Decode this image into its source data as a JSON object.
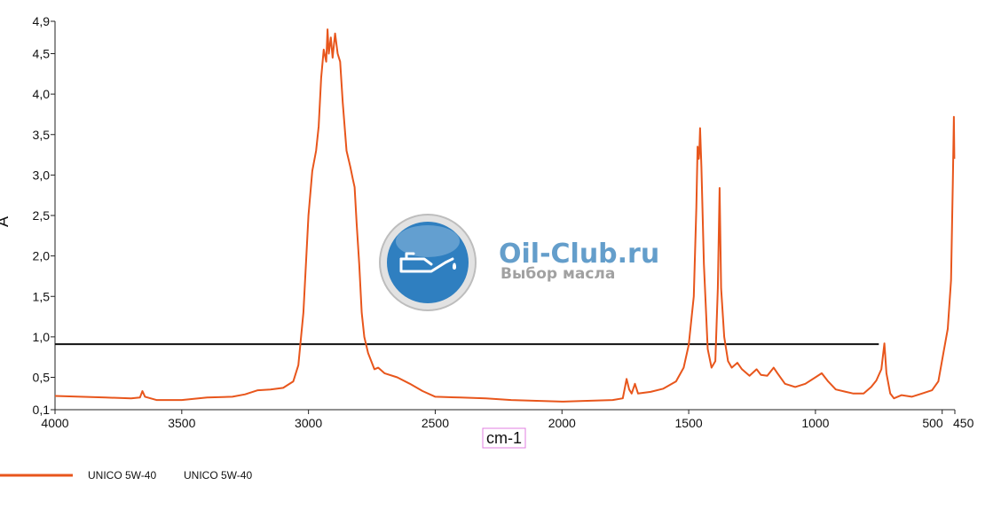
{
  "chart_data": {
    "type": "line",
    "title": "",
    "xlabel": "cm-1",
    "ylabel": "A",
    "xlim": [
      4000,
      450
    ],
    "ylim": [
      0.1,
      4.9
    ],
    "x_reversed": true,
    "x_ticks": [
      4000,
      3500,
      3000,
      2500,
      2000,
      1500,
      1000,
      500,
      450
    ],
    "x_tick_labels": [
      "4000",
      "3500",
      "3000",
      "2500",
      "2000",
      "1500",
      "1000",
      "500",
      "450"
    ],
    "y_ticks": [
      0.1,
      0.5,
      1.0,
      1.5,
      2.0,
      2.5,
      3.0,
      3.5,
      4.0,
      4.5,
      4.9
    ],
    "y_tick_labels": [
      "0,1",
      "0,5",
      "1,0",
      "1,5",
      "2,0",
      "2,5",
      "3,0",
      "3,5",
      "4,0",
      "4,5",
      "4,9"
    ],
    "grid": false,
    "legend_position": "bottom-left",
    "reference_line": {
      "y": 0.91,
      "x_from": 4000,
      "x_to": 750,
      "color": "#111111"
    },
    "series": [
      {
        "name": "UNICO 5W-40",
        "label2": "UNICO 5W-40",
        "color": "#e8561c",
        "points": [
          [
            4000,
            0.27
          ],
          [
            3900,
            0.26
          ],
          [
            3800,
            0.25
          ],
          [
            3700,
            0.24
          ],
          [
            3665,
            0.25
          ],
          [
            3655,
            0.33
          ],
          [
            3645,
            0.26
          ],
          [
            3600,
            0.22
          ],
          [
            3500,
            0.22
          ],
          [
            3400,
            0.25
          ],
          [
            3300,
            0.26
          ],
          [
            3250,
            0.29
          ],
          [
            3200,
            0.34
          ],
          [
            3150,
            0.35
          ],
          [
            3100,
            0.37
          ],
          [
            3060,
            0.45
          ],
          [
            3040,
            0.65
          ],
          [
            3020,
            1.3
          ],
          [
            3000,
            2.5
          ],
          [
            2985,
            3.05
          ],
          [
            2970,
            3.3
          ],
          [
            2960,
            3.6
          ],
          [
            2950,
            4.2
          ],
          [
            2940,
            4.55
          ],
          [
            2930,
            4.4
          ],
          [
            2925,
            4.8
          ],
          [
            2920,
            4.5
          ],
          [
            2912,
            4.7
          ],
          [
            2905,
            4.45
          ],
          [
            2895,
            4.75
          ],
          [
            2885,
            4.5
          ],
          [
            2875,
            4.4
          ],
          [
            2865,
            3.9
          ],
          [
            2850,
            3.3
          ],
          [
            2835,
            3.1
          ],
          [
            2825,
            2.95
          ],
          [
            2818,
            2.85
          ],
          [
            2810,
            2.4
          ],
          [
            2800,
            1.9
          ],
          [
            2790,
            1.3
          ],
          [
            2780,
            1.0
          ],
          [
            2765,
            0.8
          ],
          [
            2740,
            0.6
          ],
          [
            2725,
            0.62
          ],
          [
            2700,
            0.55
          ],
          [
            2650,
            0.5
          ],
          [
            2600,
            0.42
          ],
          [
            2550,
            0.33
          ],
          [
            2500,
            0.26
          ],
          [
            2400,
            0.25
          ],
          [
            2300,
            0.24
          ],
          [
            2200,
            0.22
          ],
          [
            2100,
            0.21
          ],
          [
            2000,
            0.2
          ],
          [
            1900,
            0.21
          ],
          [
            1800,
            0.22
          ],
          [
            1760,
            0.24
          ],
          [
            1745,
            0.48
          ],
          [
            1735,
            0.35
          ],
          [
            1725,
            0.3
          ],
          [
            1712,
            0.42
          ],
          [
            1700,
            0.3
          ],
          [
            1650,
            0.32
          ],
          [
            1600,
            0.36
          ],
          [
            1550,
            0.45
          ],
          [
            1520,
            0.62
          ],
          [
            1500,
            0.9
          ],
          [
            1480,
            1.5
          ],
          [
            1470,
            2.6
          ],
          [
            1465,
            3.35
          ],
          [
            1460,
            3.2
          ],
          [
            1458,
            3.3
          ],
          [
            1455,
            3.58
          ],
          [
            1450,
            3.1
          ],
          [
            1440,
            1.9
          ],
          [
            1425,
            0.85
          ],
          [
            1410,
            0.62
          ],
          [
            1395,
            0.7
          ],
          [
            1385,
            1.6
          ],
          [
            1378,
            2.84
          ],
          [
            1372,
            1.6
          ],
          [
            1360,
            1.0
          ],
          [
            1345,
            0.7
          ],
          [
            1330,
            0.62
          ],
          [
            1308,
            0.68
          ],
          [
            1290,
            0.6
          ],
          [
            1260,
            0.52
          ],
          [
            1232,
            0.6
          ],
          [
            1215,
            0.53
          ],
          [
            1190,
            0.52
          ],
          [
            1165,
            0.62
          ],
          [
            1150,
            0.55
          ],
          [
            1120,
            0.42
          ],
          [
            1080,
            0.38
          ],
          [
            1040,
            0.42
          ],
          [
            1000,
            0.5
          ],
          [
            975,
            0.55
          ],
          [
            950,
            0.45
          ],
          [
            920,
            0.35
          ],
          [
            880,
            0.32
          ],
          [
            850,
            0.3
          ],
          [
            810,
            0.3
          ],
          [
            780,
            0.38
          ],
          [
            760,
            0.46
          ],
          [
            740,
            0.6
          ],
          [
            728,
            0.92
          ],
          [
            720,
            0.55
          ],
          [
            705,
            0.3
          ],
          [
            690,
            0.24
          ],
          [
            660,
            0.28
          ],
          [
            620,
            0.26
          ],
          [
            580,
            0.3
          ],
          [
            540,
            0.34
          ],
          [
            515,
            0.45
          ],
          [
            495,
            0.8
          ],
          [
            478,
            1.1
          ],
          [
            465,
            1.7
          ],
          [
            458,
            2.9
          ],
          [
            454,
            3.72
          ],
          [
            452,
            3.2
          ]
        ]
      }
    ]
  },
  "watermark": {
    "title": "Oil-Club.ru",
    "subtitle": "Выбор масла",
    "logo_icon": "oil-can-icon",
    "colors": {
      "circle": "#2f7fc0",
      "ring": "#c9c9c9"
    }
  }
}
